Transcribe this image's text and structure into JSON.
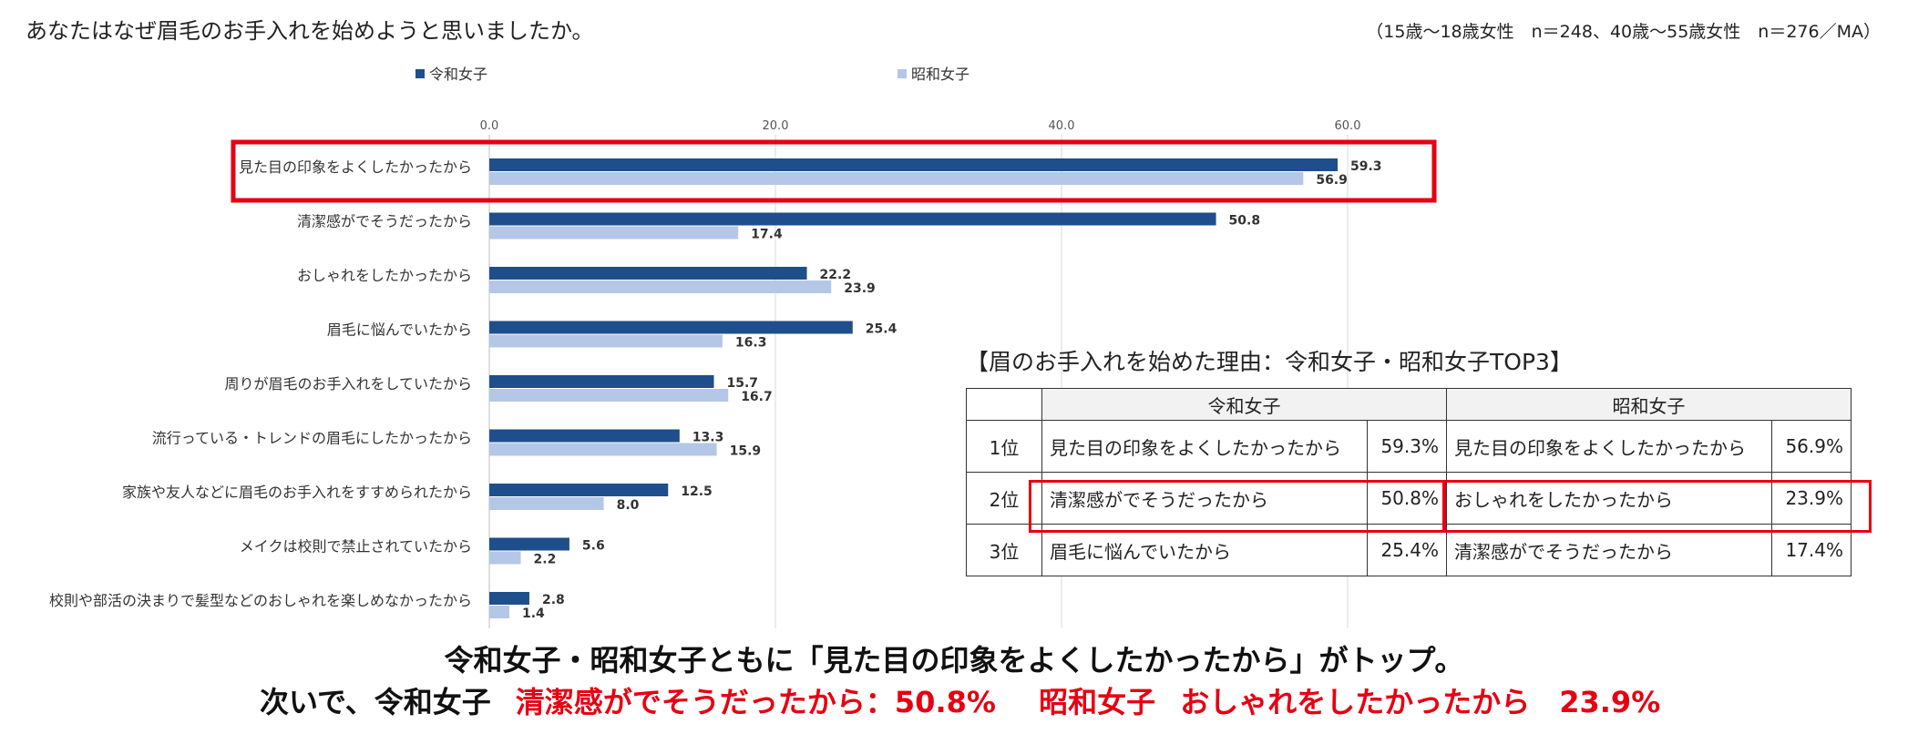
{
  "header": {
    "question": "あなたはなぜ眉毛のお手入れを始めようと思いましたか。",
    "sample": "（15歳～18歳女性　n＝248、40歳～55歳女性　n＝276／MA）"
  },
  "colors": {
    "reiwa": "#1f4e8c",
    "showa": "#b4c7e7",
    "highlight": "#e60012",
    "grid": "#d9d9d9"
  },
  "chart_data": {
    "type": "bar",
    "orientation": "horizontal",
    "title": "あなたはなぜ眉毛のお手入れを始めようと思いましたか。",
    "legend": [
      "令和女子",
      "昭和女子"
    ],
    "legend_position": "top",
    "categories": [
      "見た目の印象をよくしたかったから",
      "清潔感がでそうだったから",
      "おしゃれをしたかったから",
      "眉毛に悩んでいたから",
      "周りが眉毛のお手入れをしていたから",
      "流行っている・トレンドの眉毛にしたかったから",
      "家族や友人などに眉毛のお手入れをすすめられたから",
      "メイクは校則で禁止されていたから",
      "校則や部活の決まりで髪型などのおしゃれを楽しめなかったから"
    ],
    "series": [
      {
        "name": "令和女子",
        "values": [
          59.3,
          50.8,
          22.2,
          25.4,
          15.7,
          13.3,
          12.5,
          5.6,
          2.8
        ]
      },
      {
        "name": "昭和女子",
        "values": [
          56.9,
          17.4,
          23.9,
          16.3,
          16.7,
          15.9,
          8.0,
          2.2,
          1.4
        ]
      }
    ],
    "xlim": [
      0,
      60
    ],
    "xticks": [
      "0.0",
      "20.0",
      "40.0",
      "60.0"
    ],
    "grid": true
  },
  "top3": {
    "title": "【眉のお手入れを始めた理由：令和女子・昭和女子TOP3】",
    "headers": [
      "令和女子",
      "昭和女子"
    ],
    "rows": [
      {
        "rank": "1位",
        "reiwa_reason": "見た目の印象をよくしたかったから",
        "reiwa_pct": "59.3%",
        "showa_reason": "見た目の印象をよくしたかったから",
        "showa_pct": "56.9%"
      },
      {
        "rank": "2位",
        "reiwa_reason": "清潔感がでそうだったから",
        "reiwa_pct": "50.8%",
        "showa_reason": "おしゃれをしたかったから",
        "showa_pct": "23.9%"
      },
      {
        "rank": "3位",
        "reiwa_reason": "眉毛に悩んでいたから",
        "reiwa_pct": "25.4%",
        "showa_reason": "清潔感がでそうだったから",
        "showa_pct": "17.4%"
      }
    ]
  },
  "summary": {
    "line1": "令和女子・昭和女子ともに「見た目の印象をよくしたかったから」がトップ。",
    "line2_lead": "次いで、令和女子",
    "line2_reiwa": "清潔感がでそうだったから：50.8%",
    "line2_showa_label": "昭和女子",
    "line2_showa": "おしゃれをしたかったから　23.9%"
  }
}
